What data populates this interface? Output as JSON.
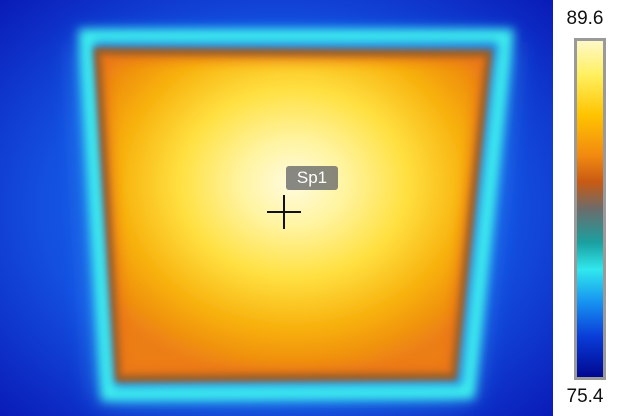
{
  "spot": {
    "label": "Sp1"
  },
  "scale": {
    "max": "89.6",
    "min": "75.4",
    "palette": [
      "#fff8c8",
      "#fff060",
      "#ffc400",
      "#f28a10",
      "#c85a14",
      "#6c6c6c",
      "#1aa0a0",
      "#30e8ee",
      "#1690f0",
      "#0a3cd8",
      "#000890"
    ]
  },
  "icons": {
    "crosshair": "crosshair-icon"
  }
}
